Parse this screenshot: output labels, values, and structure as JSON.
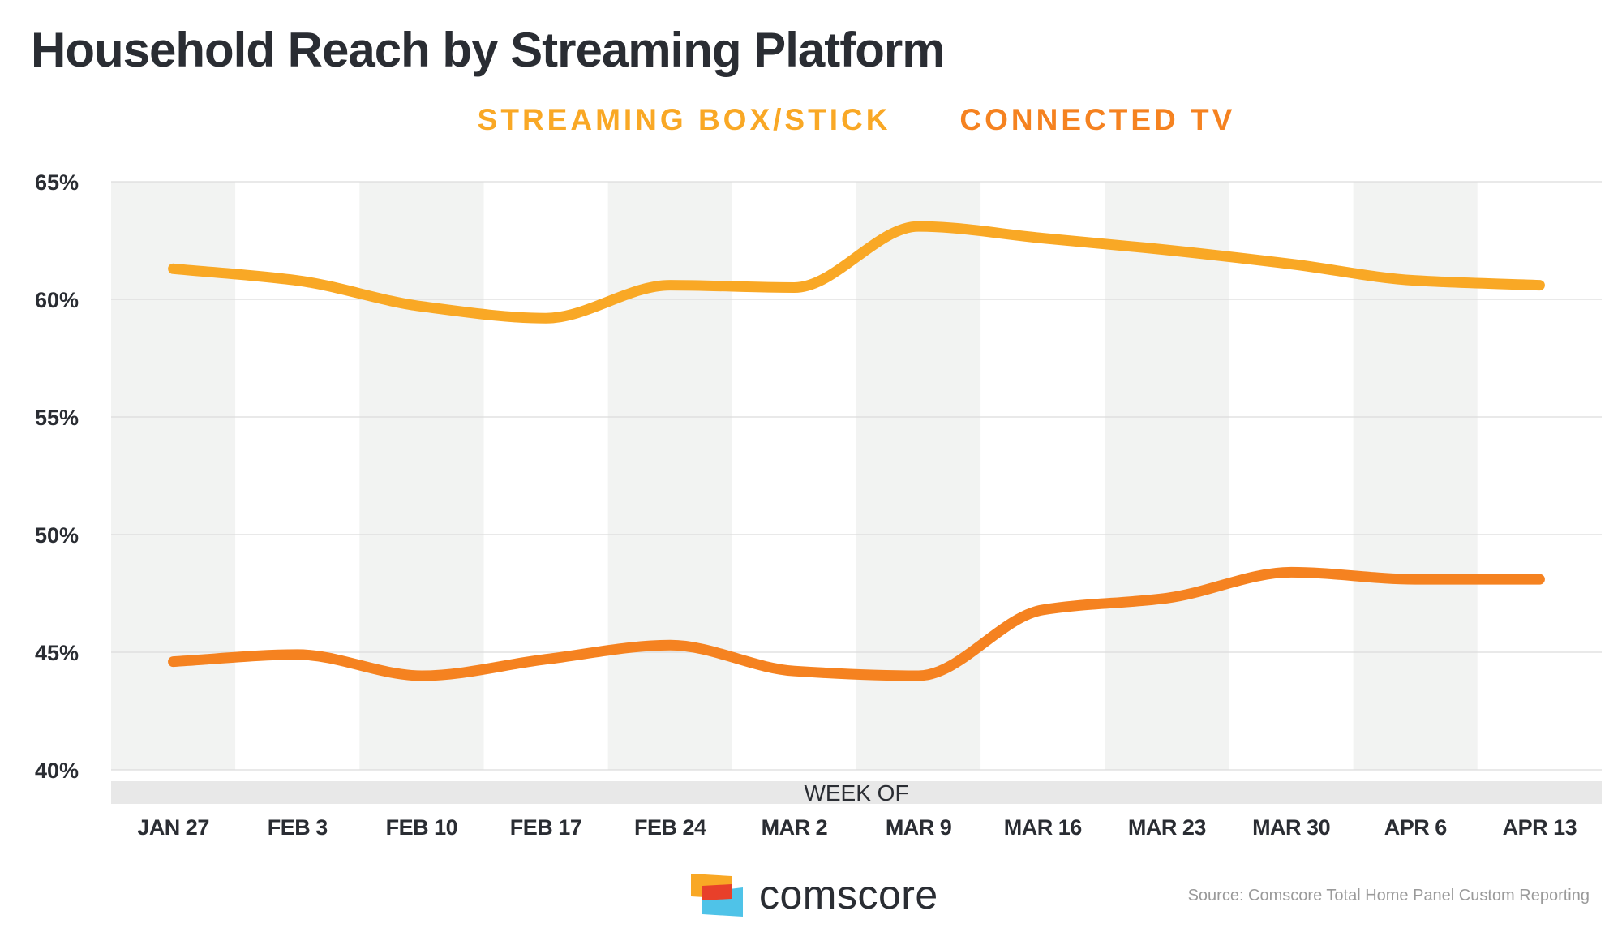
{
  "chart_data": {
    "type": "line",
    "title": "Household Reach by Streaming Platform",
    "xlabel": "WEEK OF",
    "ylabel": "",
    "ylim": [
      40,
      65
    ],
    "yticks": [
      40,
      45,
      50,
      55,
      60,
      65
    ],
    "ytick_labels": [
      "40%",
      "45%",
      "50%",
      "55%",
      "60%",
      "65%"
    ],
    "categories": [
      "JAN 27",
      "FEB 3",
      "FEB 10",
      "FEB 17",
      "FEB 24",
      "MAR 2",
      "MAR 9",
      "MAR 16",
      "MAR 23",
      "MAR 30",
      "APR 6",
      "APR 13"
    ],
    "series": [
      {
        "name": "STREAMING BOX/STICK",
        "color": "#F9A825",
        "values": [
          61.3,
          60.8,
          59.7,
          59.2,
          60.6,
          60.5,
          63.1,
          62.6,
          62.1,
          61.5,
          60.8,
          60.6
        ]
      },
      {
        "name": "CONNECTED TV",
        "color": "#F58220",
        "values": [
          44.6,
          44.9,
          44.0,
          44.7,
          45.3,
          44.2,
          44.0,
          46.8,
          47.3,
          48.4,
          48.1,
          48.1
        ]
      }
    ],
    "legend_position": "top-center",
    "grid": true
  },
  "footer": {
    "brand": "comscore",
    "source": "Source: Comscore Total Home Panel Custom Reporting"
  }
}
